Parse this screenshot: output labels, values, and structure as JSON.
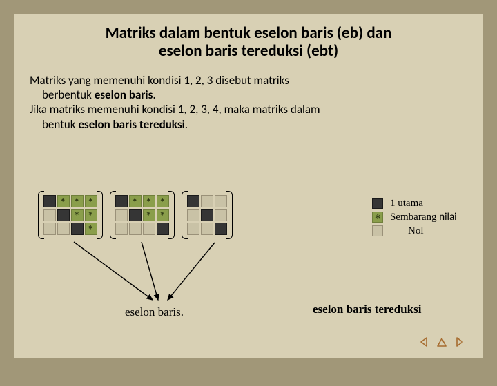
{
  "colors": {
    "page_bg": "#a19778",
    "slide_bg": "#d8d0b4",
    "cell_zero_bg": "#c9c2a6",
    "cell_zero_border": "#9a9179",
    "cell_one_bg": "#353535",
    "cell_arb_bg": "#8a9e4b",
    "nav_icon": "#a66b2e",
    "arrow_color": "#000000"
  },
  "title": {
    "line1": "Matriks dalam bentuk eselon baris (eb) dan",
    "line2": "eselon baris tereduksi (ebt)"
  },
  "paragraph": {
    "p1a": "Matriks yang memenuhi kondisi 1, 2, 3 disebut matriks",
    "p1b_prefix": "berbentuk ",
    "p1b_bold": "eselon baris",
    "p1b_suffix": ".",
    "p2a": "Jika matriks memenuhi kondisi 1, 2, 3, 4, maka matriks dalam",
    "p2b_prefix": "bentuk ",
    "p2b_bold": "eselon baris  tereduksi",
    "p2b_suffix": "."
  },
  "matrices": [
    {
      "cols": 4,
      "rows": [
        [
          "one",
          "arb",
          "arb",
          "arb"
        ],
        [
          "zero",
          "one",
          "arb",
          "arb"
        ],
        [
          "zero",
          "zero",
          "one",
          "arb"
        ]
      ]
    },
    {
      "cols": 4,
      "rows": [
        [
          "one",
          "arb",
          "arb",
          "arb"
        ],
        [
          "zero",
          "one",
          "arb",
          "arb"
        ],
        [
          "zero",
          "zero",
          "zero",
          "one"
        ]
      ]
    },
    {
      "cols": 3,
      "rows": [
        [
          "one",
          "zero",
          "zero"
        ],
        [
          "zero",
          "one",
          "zero"
        ],
        [
          "zero",
          "zero",
          "one"
        ]
      ]
    }
  ],
  "legend": {
    "one": "1 utama",
    "arb_main": "Sembarang ",
    "arb_last": "nilai",
    "zero": "Nol"
  },
  "captions": {
    "eb": "eselon baris.",
    "ebt": "eselon baris tereduksi"
  },
  "nav": {
    "prev": "prev-icon",
    "home": "home-icon",
    "next": "next-icon"
  }
}
